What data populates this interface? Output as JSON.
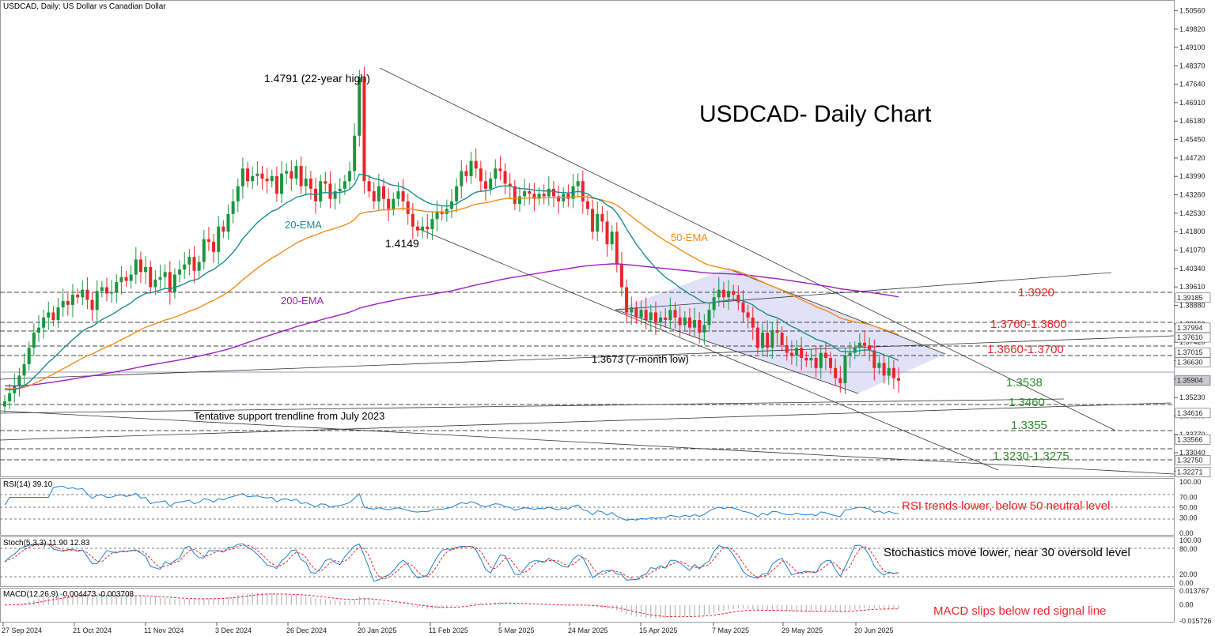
{
  "header": {
    "symbol_title": "USDCAD, Daily:  US Dollar vs Canadian Dollar",
    "chart_title": "USDCAD- Daily Chart"
  },
  "colors": {
    "bull_candle": "#1a9641",
    "bear_candle": "#e8262a",
    "ema20": "#1a8c8c",
    "ema50": "#f28c1a",
    "ema200": "#9b1fbf",
    "support_text": "#2e8b2e",
    "resistance_text": "#e8262a",
    "channel_fill": "#c9c9f2",
    "level_line": "#444444",
    "indicator_line": "#1f7fd1",
    "signal_line": "#e8262a",
    "annotation_red": "#e8262a"
  },
  "annotations": {
    "high_label": "1.4791 (22-year high)",
    "low_label": "1.4149",
    "ema20_label": "20-EMA",
    "ema50_label": "50-EMA",
    "ema200_label": "200-EMA",
    "seven_month_low": "1.3673 (7-month low)",
    "trendline_label": "Tentative support trendline from July 2023",
    "levels": [
      {
        "text": "1.3920",
        "kind": "resistance"
      },
      {
        "text": "1.3760-1.3800",
        "kind": "resistance"
      },
      {
        "text": "1.3660-1.3700",
        "kind": "resistance"
      },
      {
        "text": "1.3538",
        "kind": "support"
      },
      {
        "text": "1.3460",
        "kind": "support"
      },
      {
        "text": "1.3355",
        "kind": "support"
      },
      {
        "text": "1.3230-1.3275",
        "kind": "support"
      }
    ]
  },
  "indicators": {
    "rsi_title": "RSI(14) 39.10",
    "rsi_note": "RSI trends lower, below 50 neutral level",
    "rsi_ticks": [
      "100.00",
      "70.00",
      "50.00",
      "30.00",
      "0.00"
    ],
    "stoch_title": "Stoch(5,3,3) 11.90 12.83",
    "stoch_note": "Stochastics move lower, near 30 oversold level",
    "stoch_ticks": [
      "100.00",
      "80.00",
      "20.00",
      "0.00"
    ],
    "macd_title": "MACD(12,26,9) -0.004473 -0.003708",
    "macd_note": "MACD slips below red signal line",
    "macd_ticks": [
      "0.013767",
      "0.00",
      "-0.015726"
    ]
  },
  "chart_data": {
    "type": "candlestick",
    "title": "USDCAD- Daily Chart",
    "series": [
      {
        "name": "20-EMA"
      },
      {
        "name": "50-EMA"
      },
      {
        "name": "200-EMA"
      }
    ],
    "dates": [
      "27 Sep 2024",
      "21 Oct 2024",
      "11 Nov 2024",
      "3 Dec 2024",
      "26 Dec 2024",
      "20 Jan 2025",
      "11 Feb 2025",
      "5 Mar 2025",
      "24 Mar 2025",
      "15 Apr 2025",
      "7 May 2025",
      "29 May 2025",
      "20 Jun 2025"
    ],
    "price_ticks": [
      "1.50560",
      "1.49820",
      "1.49100",
      "1.48370",
      "1.47640",
      "1.46910",
      "1.46180",
      "1.45450",
      "1.44720",
      "1.43990",
      "1.43260",
      "1.42530",
      "1.41800",
      "1.41070",
      "1.40340",
      "1.39610",
      "1.38880",
      "1.38150",
      "1.37420",
      "1.36690",
      "1.35960",
      "1.35230",
      "1.34500",
      "1.33770",
      "1.33040",
      "1.32310"
    ],
    "price_badges": [
      "1.39185",
      "1.37994",
      "1.37610",
      "1.37015",
      "1.36630",
      "1.35904",
      "1.34616",
      "1.33566",
      "1.32750",
      "1.32271"
    ],
    "ylim": [
      1.322,
      1.5085
    ],
    "key_values": {
      "high": 1.4791,
      "swing_low": 1.4149,
      "seven_month_low": 1.3673,
      "last_close": 1.35904,
      "ema200_last": 1.392
    },
    "closes": [
      1.3508,
      1.354,
      1.357,
      1.361,
      1.3655,
      1.372,
      1.378,
      1.38,
      1.384,
      1.386,
      1.383,
      1.388,
      1.3905,
      1.389,
      1.393,
      1.392,
      1.395,
      1.391,
      1.387,
      1.3945,
      1.396,
      1.3935,
      1.394,
      1.398,
      1.4,
      1.3985,
      1.401,
      1.407,
      1.402,
      1.404,
      1.396,
      1.399,
      1.4,
      1.402,
      1.394,
      1.401,
      1.403,
      1.405,
      1.408,
      1.4025,
      1.406,
      1.415,
      1.414,
      1.41,
      1.42,
      1.418,
      1.425,
      1.43,
      1.436,
      1.443,
      1.438,
      1.44,
      1.441,
      1.439,
      1.438,
      1.44,
      1.433,
      1.441,
      1.442,
      1.439,
      1.444,
      1.436,
      1.439,
      1.435,
      1.43,
      1.438,
      1.437,
      1.431,
      1.434,
      1.435,
      1.438,
      1.442,
      1.456,
      1.479,
      1.438,
      1.434,
      1.43,
      1.436,
      1.431,
      1.427,
      1.431,
      1.434,
      1.43,
      1.425,
      1.42,
      1.4185,
      1.42,
      1.419,
      1.423,
      1.426,
      1.425,
      1.427,
      1.43,
      1.436,
      1.442,
      1.44,
      1.446,
      1.443,
      1.438,
      1.435,
      1.439,
      1.443,
      1.442,
      1.437,
      1.436,
      1.429,
      1.432,
      1.434,
      1.433,
      1.431,
      1.433,
      1.432,
      1.435,
      1.432,
      1.43,
      1.433,
      1.431,
      1.436,
      1.438,
      1.43,
      1.427,
      1.418,
      1.425,
      1.422,
      1.413,
      1.418,
      1.405,
      1.396,
      1.386,
      1.388,
      1.384,
      1.387,
      1.383,
      1.386,
      1.382,
      1.384,
      1.383,
      1.387,
      1.384,
      1.381,
      1.384,
      1.38,
      1.383,
      1.378,
      1.381,
      1.387,
      1.392,
      1.395,
      1.392,
      1.3945,
      1.393,
      1.39,
      1.386,
      1.384,
      1.38,
      1.372,
      1.378,
      1.372,
      1.379,
      1.378,
      1.373,
      1.37,
      1.369,
      1.372,
      1.368,
      1.367,
      1.368,
      1.364,
      1.37,
      1.368,
      1.364,
      1.36,
      1.358,
      1.369,
      1.37,
      1.372,
      1.374,
      1.373,
      1.371,
      1.364,
      1.366,
      1.361,
      1.364,
      1.36,
      1.359
    ]
  }
}
